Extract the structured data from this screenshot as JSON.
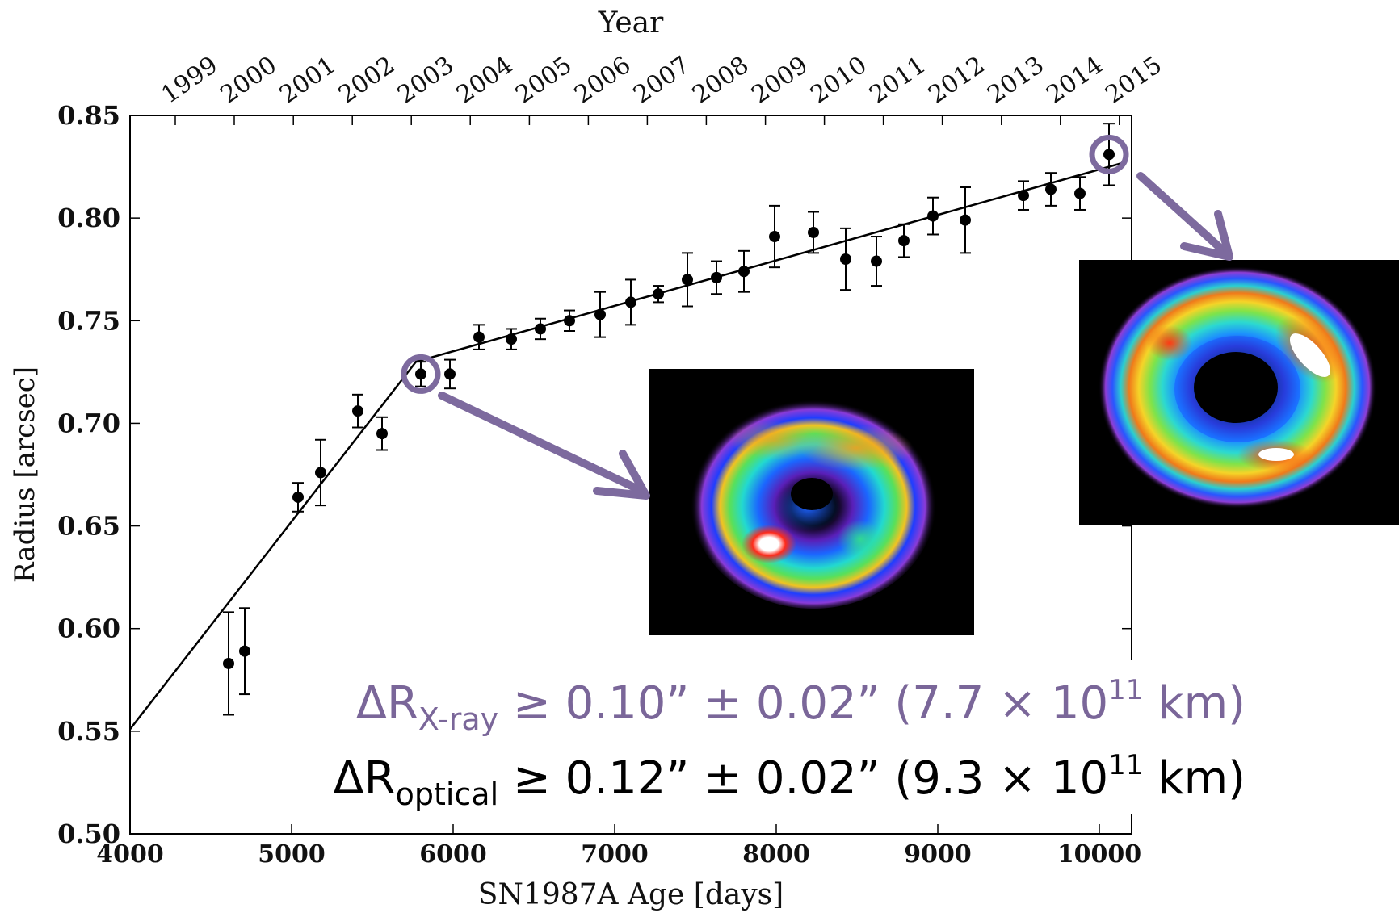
{
  "chart_data": {
    "type": "scatter",
    "xlabel": "SN1987A Age [days]",
    "ylabel": "Radius [arcsec]",
    "top_axis_label": "Year",
    "xlim": [
      4000,
      10200
    ],
    "ylim": [
      0.5,
      0.85
    ],
    "x_ticks": [
      4000,
      5000,
      6000,
      7000,
      8000,
      9000,
      10000
    ],
    "y_ticks": [
      0.5,
      0.55,
      0.6,
      0.65,
      0.7,
      0.75,
      0.8,
      0.85
    ],
    "y_tick_labels": [
      "0.50",
      "0.55",
      "0.60",
      "0.65",
      "0.70",
      "0.75",
      "0.80",
      "0.85"
    ],
    "year_ticks": [
      {
        "label": "1999",
        "day": 4280
      },
      {
        "label": "2000",
        "day": 4645
      },
      {
        "label": "2001",
        "day": 5011
      },
      {
        "label": "2002",
        "day": 5376
      },
      {
        "label": "2003",
        "day": 5741
      },
      {
        "label": "2004",
        "day": 6106
      },
      {
        "label": "2005",
        "day": 6472
      },
      {
        "label": "2006",
        "day": 6837
      },
      {
        "label": "2007",
        "day": 7202
      },
      {
        "label": "2008",
        "day": 7567
      },
      {
        "label": "2009",
        "day": 7933
      },
      {
        "label": "2010",
        "day": 8298
      },
      {
        "label": "2011",
        "day": 8663
      },
      {
        "label": "2012",
        "day": 9028
      },
      {
        "label": "2013",
        "day": 9394
      },
      {
        "label": "2014",
        "day": 9759
      },
      {
        "label": "2015",
        "day": 10124
      }
    ],
    "points": [
      {
        "x": 4610,
        "y": 0.583,
        "err": 0.025
      },
      {
        "x": 4710,
        "y": 0.589,
        "err": 0.021
      },
      {
        "x": 5040,
        "y": 0.664,
        "err": 0.007
      },
      {
        "x": 5180,
        "y": 0.676,
        "err": 0.016
      },
      {
        "x": 5410,
        "y": 0.706,
        "err": 0.008
      },
      {
        "x": 5560,
        "y": 0.695,
        "err": 0.008
      },
      {
        "x": 5800,
        "y": 0.724,
        "err": 0.006
      },
      {
        "x": 5980,
        "y": 0.724,
        "err": 0.007
      },
      {
        "x": 6160,
        "y": 0.742,
        "err": 0.006
      },
      {
        "x": 6360,
        "y": 0.741,
        "err": 0.005
      },
      {
        "x": 6540,
        "y": 0.746,
        "err": 0.005
      },
      {
        "x": 6720,
        "y": 0.75,
        "err": 0.005
      },
      {
        "x": 6910,
        "y": 0.753,
        "err": 0.011
      },
      {
        "x": 7100,
        "y": 0.759,
        "err": 0.011
      },
      {
        "x": 7270,
        "y": 0.763,
        "err": 0.004
      },
      {
        "x": 7450,
        "y": 0.77,
        "err": 0.013
      },
      {
        "x": 7630,
        "y": 0.771,
        "err": 0.008
      },
      {
        "x": 7800,
        "y": 0.774,
        "err": 0.01
      },
      {
        "x": 7990,
        "y": 0.791,
        "err": 0.015
      },
      {
        "x": 8230,
        "y": 0.793,
        "err": 0.01
      },
      {
        "x": 8430,
        "y": 0.78,
        "err": 0.015
      },
      {
        "x": 8620,
        "y": 0.779,
        "err": 0.012
      },
      {
        "x": 8790,
        "y": 0.789,
        "err": 0.008
      },
      {
        "x": 8970,
        "y": 0.801,
        "err": 0.009
      },
      {
        "x": 9170,
        "y": 0.799,
        "err": 0.016
      },
      {
        "x": 9530,
        "y": 0.811,
        "err": 0.007
      },
      {
        "x": 9700,
        "y": 0.814,
        "err": 0.008
      },
      {
        "x": 9880,
        "y": 0.812,
        "err": 0.008
      },
      {
        "x": 10060,
        "y": 0.831,
        "err": 0.015
      }
    ],
    "fit_line": [
      {
        "x": 4000,
        "y": 0.551
      },
      {
        "x": 5770,
        "y": 0.73
      },
      {
        "x": 10150,
        "y": 0.827
      }
    ],
    "highlighted_points": [
      {
        "x": 5800,
        "y": 0.724
      },
      {
        "x": 10060,
        "y": 0.831
      }
    ],
    "annotations": {
      "xray": {
        "prefix": "ΔR",
        "sub": "X-ray",
        "text": " ≥ 0.10” ± 0.02” (7.7 × 10",
        "sup": "11",
        "suffix": " km)",
        "color": "#7a6699"
      },
      "optical": {
        "prefix": "ΔR",
        "sub": "optical",
        "text": " ≥ 0.12” ± 0.02” (9.3 × 10",
        "sup": "11",
        "suffix": " km)",
        "color": "#000000"
      }
    },
    "colors": {
      "highlight": "#7d6a9e",
      "points": "#000000",
      "line": "#000000"
    }
  }
}
